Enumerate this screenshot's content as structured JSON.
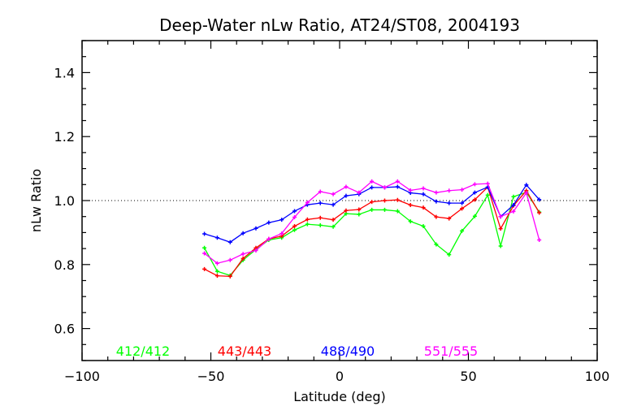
{
  "chart_data": {
    "type": "line",
    "title": "Deep-Water nLw Ratio, AT24/ST08, 2004193",
    "xlabel": "Latitude (deg)",
    "ylabel": "nLw Ratio",
    "xlim": [
      -100,
      100
    ],
    "ylim": [
      0.5,
      1.5
    ],
    "xticks": [
      -100,
      -50,
      0,
      50,
      100
    ],
    "xtick_labels": [
      "−100",
      "−50",
      "0",
      "50",
      "100"
    ],
    "yticks": [
      0.6,
      0.8,
      1.0,
      1.2,
      1.4
    ],
    "ytick_labels": [
      "0.6",
      "0.8",
      "1.0",
      "1.2",
      "1.4"
    ],
    "reference_line": 1.0,
    "x": [
      -52.5,
      -47.5,
      -42.5,
      -37.5,
      -32.5,
      -27.5,
      -22.5,
      -17.5,
      -12.5,
      -7.5,
      -2.5,
      2.5,
      7.5,
      12.5,
      17.5,
      22.5,
      27.5,
      32.5,
      37.5,
      42.5,
      47.5,
      52.5,
      57.5,
      62.5,
      67.5,
      72.5,
      77.5
    ],
    "series": [
      {
        "name": "412/412",
        "color": "#00ff00",
        "values": [
          0.852,
          0.779,
          0.766,
          0.814,
          0.847,
          0.877,
          0.884,
          0.908,
          0.926,
          0.923,
          0.918,
          0.959,
          0.957,
          0.971,
          0.971,
          0.967,
          0.935,
          0.92,
          0.863,
          0.831,
          0.905,
          0.951,
          1.017,
          0.858,
          1.012,
          1.026,
          0.964
        ]
      },
      {
        "name": "443/443",
        "color": "#ff0000",
        "values": [
          0.786,
          0.765,
          0.763,
          0.819,
          0.852,
          0.88,
          0.889,
          0.92,
          0.941,
          0.946,
          0.94,
          0.969,
          0.972,
          0.996,
          1.0,
          1.002,
          0.986,
          0.978,
          0.949,
          0.944,
          0.975,
          1.003,
          1.042,
          0.912,
          0.984,
          1.031,
          0.962
        ]
      },
      {
        "name": "488/490",
        "color": "#0000ff",
        "values": [
          0.896,
          0.884,
          0.87,
          0.898,
          0.913,
          0.931,
          0.94,
          0.967,
          0.987,
          0.992,
          0.987,
          1.015,
          1.02,
          1.041,
          1.041,
          1.043,
          1.024,
          1.02,
          0.997,
          0.992,
          0.992,
          1.025,
          1.042,
          0.95,
          0.986,
          1.049,
          1.003
        ]
      },
      {
        "name": "551/555",
        "color": "#ff00ff",
        "values": [
          0.835,
          0.804,
          0.814,
          0.833,
          0.844,
          0.88,
          0.897,
          0.948,
          0.994,
          1.028,
          1.02,
          1.043,
          1.025,
          1.06,
          1.041,
          1.06,
          1.032,
          1.038,
          1.025,
          1.031,
          1.034,
          1.051,
          1.053,
          0.95,
          0.966,
          1.024,
          0.877
        ]
      }
    ],
    "legend_placement": "bottom-inside",
    "grid": false
  }
}
